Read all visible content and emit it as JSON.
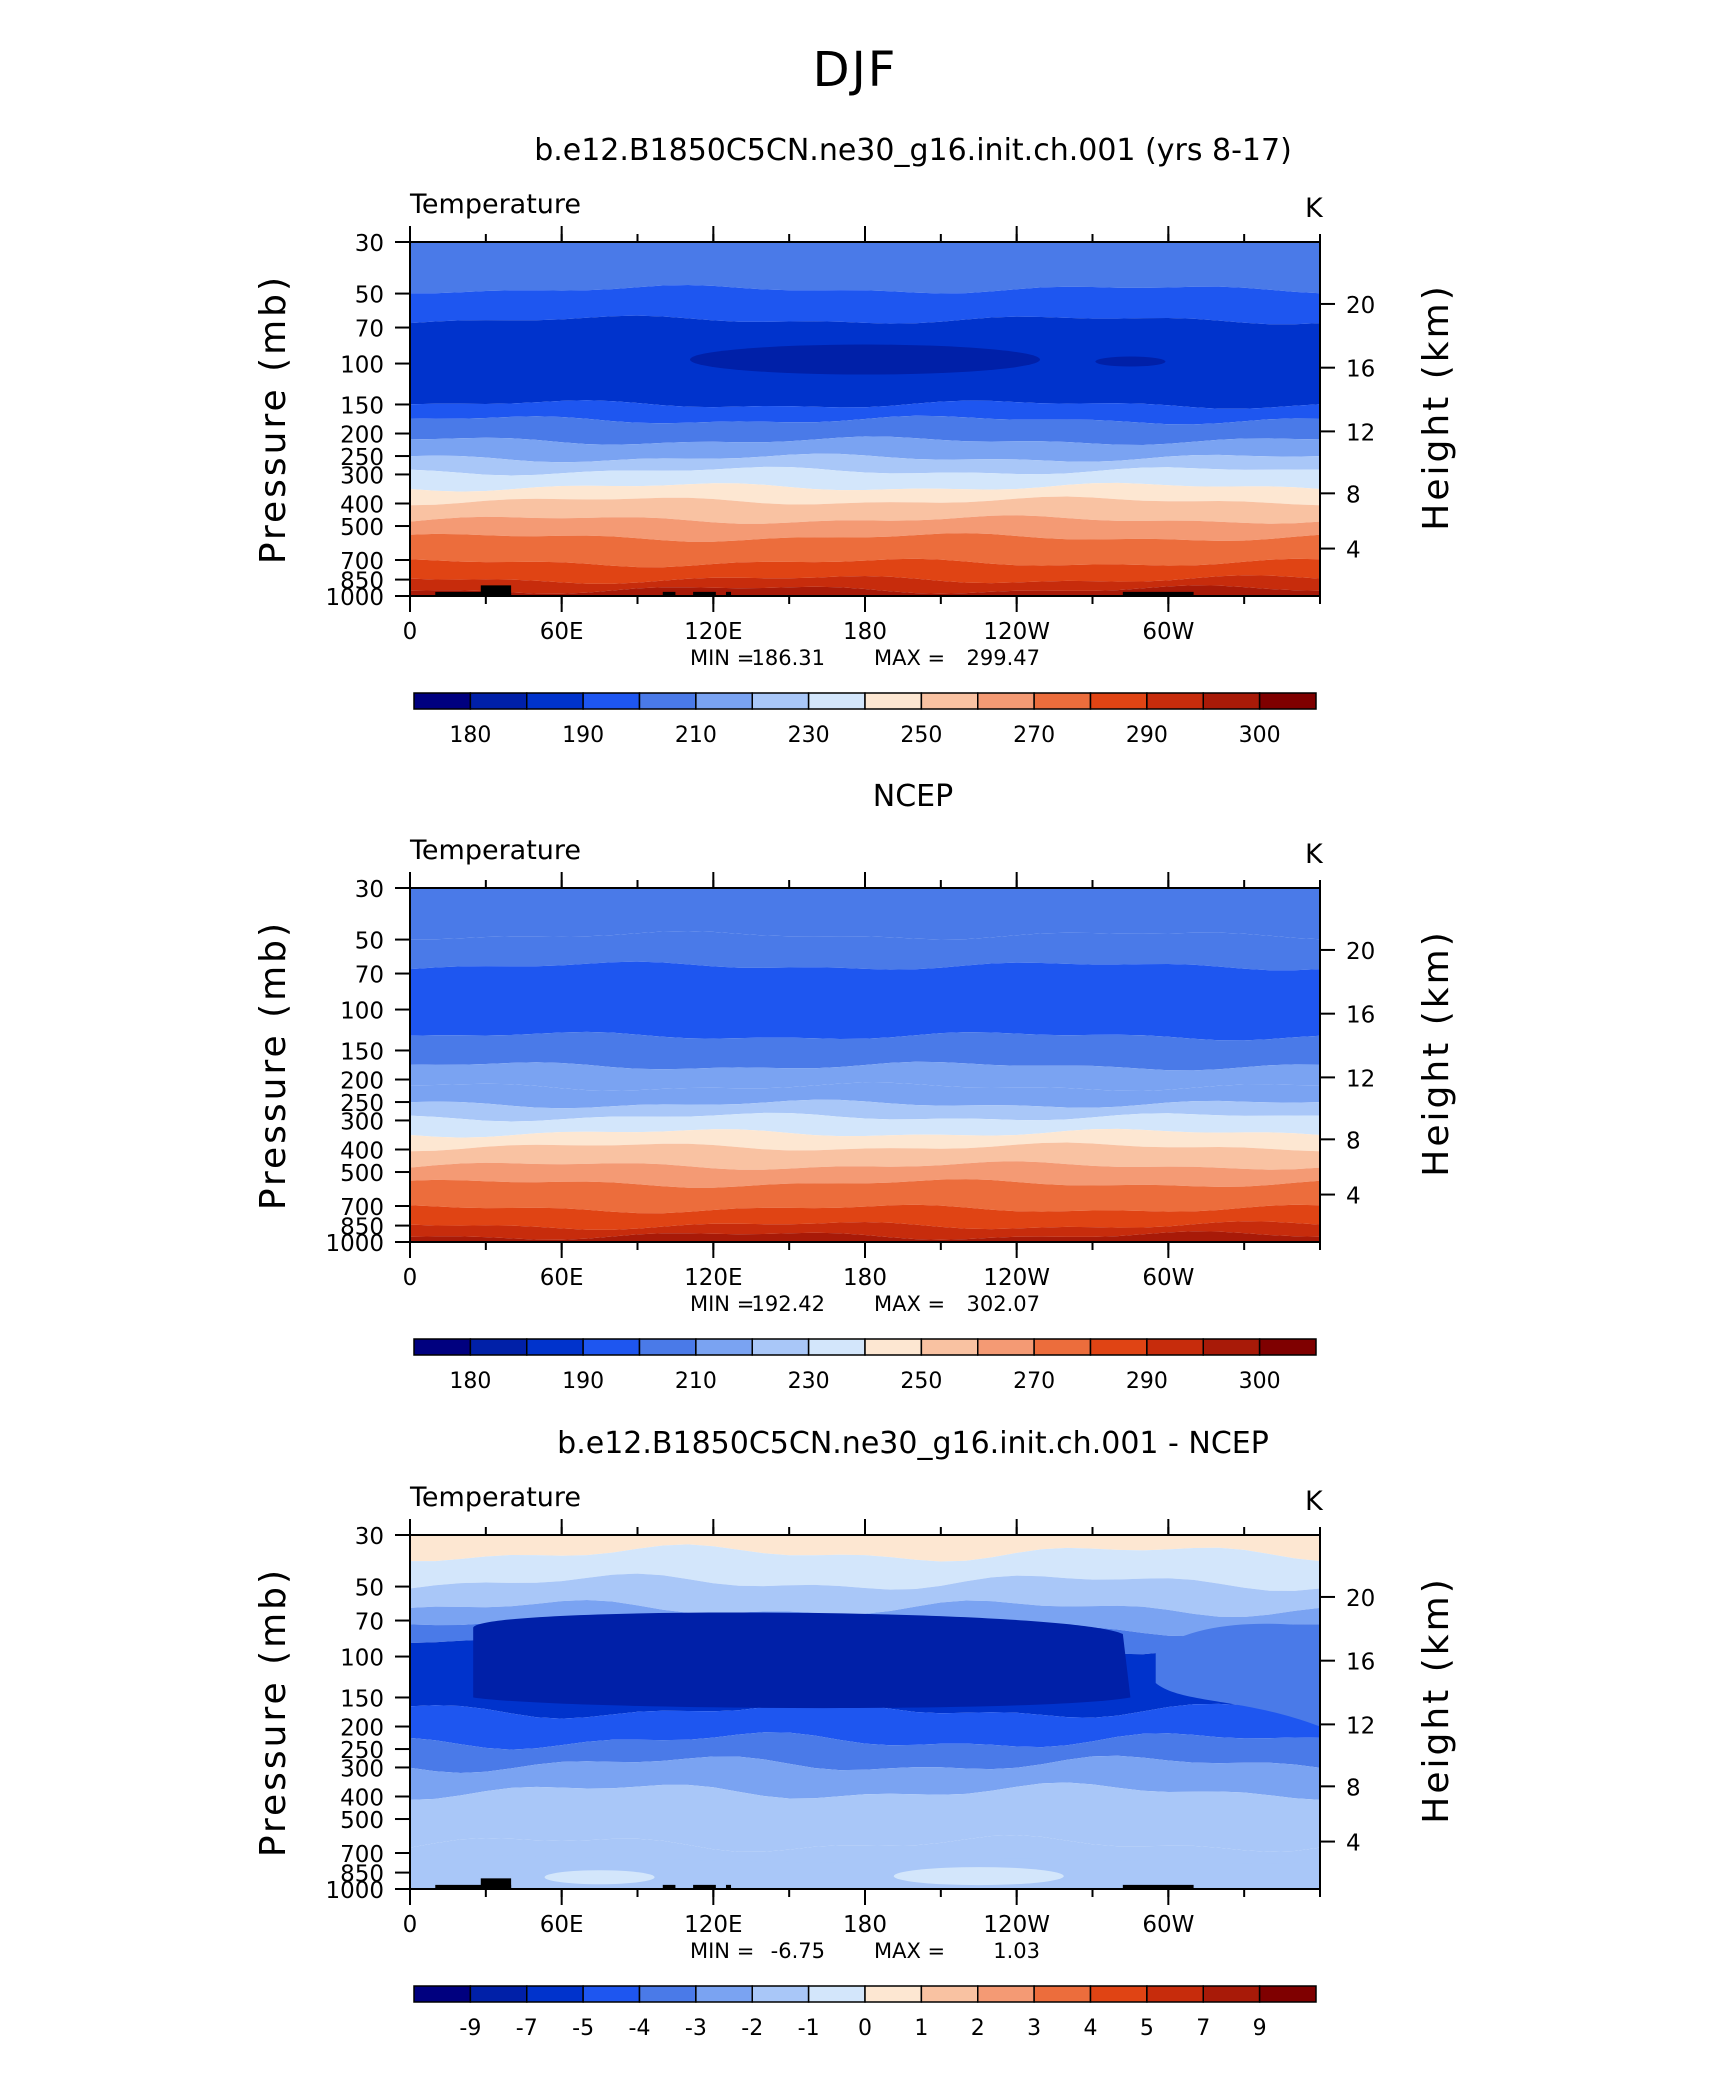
{
  "figure": {
    "title": "DJF"
  },
  "panels_common": {
    "variable_label": "Temperature",
    "units_label": "K",
    "left_axis_label": "Pressure (mb)",
    "right_axis_label": "Height (km)",
    "pressure_ticks": [
      "30",
      "50",
      "70",
      "100",
      "150",
      "200",
      "250",
      "300",
      "400",
      "500",
      "700",
      "850",
      "1000"
    ],
    "height_ticks": [
      "20",
      "16",
      "12",
      "8",
      "4"
    ],
    "lon_ticks": [
      "0",
      "60E",
      "120E",
      "180",
      "120W",
      "60W"
    ]
  },
  "chart_data": [
    {
      "type": "heatmap",
      "title": "b.e12.B1850C5CN.ne30_g16.init.ch.001 (yrs 8-17)",
      "xlabel": "",
      "ylabel": "Pressure (mb)",
      "y2label": "Height (km)",
      "x_range": [
        0,
        360
      ],
      "y_range_mb": [
        1000,
        30
      ],
      "stats": {
        "min_label": "MIN =",
        "min_value": "186.31",
        "max_label": "MAX =",
        "max_value": "299.47"
      },
      "colorbar": {
        "labels": [
          "180",
          "190",
          "210",
          "230",
          "250",
          "270",
          "290",
          "300"
        ],
        "colors": [
          "#00007f",
          "#0020a8",
          "#0033cc",
          "#1e56f0",
          "#4a7ae8",
          "#7aa3f2",
          "#a9c7f8",
          "#d3e6fb",
          "#fde7d2",
          "#f9c2a2",
          "#f49a74",
          "#ec6d3c",
          "#e04414",
          "#c72c0c",
          "#a81a08",
          "#7f0000"
        ]
      },
      "bands_by_pressure": [
        {
          "p": 30,
          "value": "~212"
        },
        {
          "p": 50,
          "value": "~205"
        },
        {
          "p": 100,
          "value": "~196"
        },
        {
          "p": 150,
          "value": "~205"
        },
        {
          "p": 200,
          "value": "~215"
        },
        {
          "p": 300,
          "value": "~232"
        },
        {
          "p": 400,
          "value": "~247"
        },
        {
          "p": 500,
          "value": "~258"
        },
        {
          "p": 700,
          "value": "~275"
        },
        {
          "p": 850,
          "value": "~285"
        },
        {
          "p": 1000,
          "value": "~293"
        }
      ]
    },
    {
      "type": "heatmap",
      "title": "NCEP",
      "xlabel": "",
      "ylabel": "Pressure (mb)",
      "y2label": "Height (km)",
      "x_range": [
        0,
        360
      ],
      "y_range_mb": [
        1000,
        30
      ],
      "stats": {
        "min_label": "MIN =",
        "min_value": "192.42",
        "max_label": "MAX =",
        "max_value": "302.07"
      },
      "colorbar": {
        "labels": [
          "180",
          "190",
          "210",
          "230",
          "250",
          "270",
          "290",
          "300"
        ],
        "colors": [
          "#00007f",
          "#0020a8",
          "#0033cc",
          "#1e56f0",
          "#4a7ae8",
          "#7aa3f2",
          "#a9c7f8",
          "#d3e6fb",
          "#fde7d2",
          "#f9c2a2",
          "#f49a74",
          "#ec6d3c",
          "#e04414",
          "#c72c0c",
          "#a81a08",
          "#7f0000"
        ]
      },
      "bands_by_pressure": [
        {
          "p": 30,
          "value": "~214"
        },
        {
          "p": 50,
          "value": "~208"
        },
        {
          "p": 100,
          "value": "~200"
        },
        {
          "p": 150,
          "value": "~207"
        },
        {
          "p": 200,
          "value": "~217"
        },
        {
          "p": 300,
          "value": "~234"
        },
        {
          "p": 400,
          "value": "~248"
        },
        {
          "p": 500,
          "value": "~259"
        },
        {
          "p": 700,
          "value": "~276"
        },
        {
          "p": 850,
          "value": "~286"
        },
        {
          "p": 1000,
          "value": "~296"
        }
      ]
    },
    {
      "type": "heatmap",
      "title": "b.e12.B1850C5CN.ne30_g16.init.ch.001 - NCEP",
      "xlabel": "",
      "ylabel": "Pressure (mb)",
      "y2label": "Height (km)",
      "x_range": [
        0,
        360
      ],
      "y_range_mb": [
        1000,
        30
      ],
      "stats": {
        "min_label": "MIN =",
        "min_value": "-6.75",
        "max_label": "MAX =",
        "max_value": "1.03"
      },
      "colorbar": {
        "labels": [
          "-9",
          "-7",
          "-5",
          "-4",
          "-3",
          "-2",
          "-1",
          "0",
          "1",
          "2",
          "3",
          "4",
          "5",
          "7",
          "9"
        ],
        "colors": [
          "#00007f",
          "#0020a8",
          "#0033cc",
          "#1e56f0",
          "#4a7ae8",
          "#7aa3f2",
          "#a9c7f8",
          "#d3e6fb",
          "#fde7d2",
          "#f9c2a2",
          "#f49a74",
          "#ec6d3c",
          "#e04414",
          "#c72c0c",
          "#a81a08",
          "#7f0000"
        ]
      },
      "bands_by_pressure": [
        {
          "p": 30,
          "value": "~0.5"
        },
        {
          "p": 50,
          "value": "~-1.5"
        },
        {
          "p": 70,
          "value": "~-3"
        },
        {
          "p": 100,
          "value": "~-5"
        },
        {
          "p": 150,
          "value": "~-5"
        },
        {
          "p": 200,
          "value": "~-3.5"
        },
        {
          "p": 300,
          "value": "~-2.5"
        },
        {
          "p": 500,
          "value": "~-1.5"
        },
        {
          "p": 850,
          "value": "~-0.5"
        }
      ]
    }
  ]
}
